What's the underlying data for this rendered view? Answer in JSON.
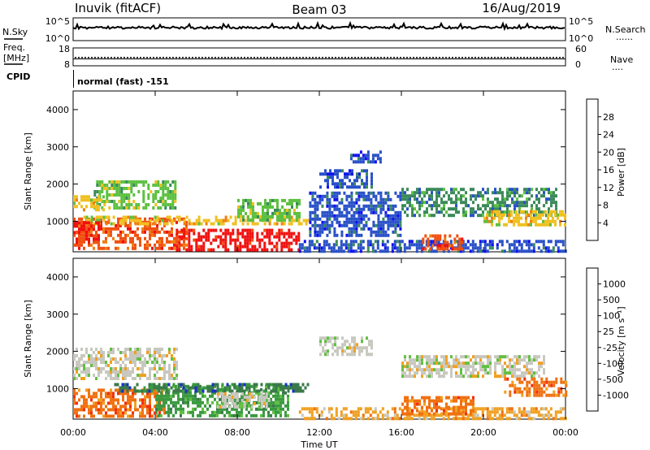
{
  "header": {
    "station": "Inuvik (fitACF)",
    "beam": "Beam 03",
    "date": "16/Aug/2019"
  },
  "sky_panel": {
    "left_label": "N.Sky",
    "right_label": "N.Search",
    "right_marker": "......",
    "tick_top": "10^5",
    "tick_bottom": "10^0"
  },
  "freq_panel": {
    "left_label_1": "Freq.",
    "left_label_2": "[MHz]",
    "left_tick_top": "18",
    "left_tick_bottom": "8",
    "right_label": "Nave",
    "right_marker": "....",
    "right_tick_top": "60",
    "right_tick_bottom": "0"
  },
  "cpid": {
    "label": "CPID",
    "value": "normal (fast) -151"
  },
  "chart_data": [
    {
      "type": "heatmap",
      "name": "power",
      "ylabel": "Slant Range [km]",
      "ylim": [
        180,
        4500
      ],
      "yticks": [
        1000,
        2000,
        3000,
        4000
      ],
      "xlim": [
        0,
        24
      ],
      "colorbar": {
        "label": "Power [dB]",
        "ticks": [
          "4",
          "8",
          "12",
          "16",
          "20",
          "24",
          "28"
        ],
        "colors": [
          "#1010f0",
          "#2850c8",
          "#3a8a5a",
          "#5cc040",
          "#f0c020",
          "#f08010",
          "#f05010",
          "#f01010"
        ]
      },
      "echoes": [
        {
          "t0": 0.0,
          "t1": 5.5,
          "r0": 250,
          "r1": 1100,
          "c": 6
        },
        {
          "t0": 5.0,
          "t1": 11.0,
          "r0": 200,
          "r1": 800,
          "c": 7
        },
        {
          "t0": 0.5,
          "t1": 11.5,
          "r0": 900,
          "r1": 1150,
          "c": 4
        },
        {
          "t0": 0.0,
          "t1": 1.2,
          "r0": 400,
          "r1": 1000,
          "c": 7
        },
        {
          "t0": 1.0,
          "t1": 5.0,
          "r0": 1400,
          "r1": 2100,
          "c": 3
        },
        {
          "t0": 0.0,
          "t1": 1.5,
          "r0": 1300,
          "r1": 1700,
          "c": 4
        },
        {
          "t0": 11.0,
          "t1": 24.0,
          "r0": 200,
          "r1": 500,
          "c": 1
        },
        {
          "t0": 17.0,
          "t1": 19.0,
          "r0": 250,
          "r1": 650,
          "c": 6
        },
        {
          "t0": 11.5,
          "t1": 16.0,
          "r0": 600,
          "r1": 1800,
          "c": 1
        },
        {
          "t0": 12.0,
          "t1": 14.5,
          "r0": 1900,
          "r1": 2400,
          "c": 1
        },
        {
          "t0": 13.5,
          "t1": 15.0,
          "r0": 2600,
          "r1": 2900,
          "c": 1
        },
        {
          "t0": 16.0,
          "t1": 23.5,
          "r0": 1200,
          "r1": 1900,
          "c": 2
        },
        {
          "t0": 20.0,
          "t1": 24.0,
          "r0": 900,
          "r1": 1300,
          "c": 4
        },
        {
          "t0": 8.0,
          "t1": 11.0,
          "r0": 1000,
          "r1": 1600,
          "c": 3
        }
      ]
    },
    {
      "type": "heatmap",
      "name": "velocity",
      "ylabel": "Slant Range [km]",
      "xlabel": "Time UT",
      "ylim": [
        180,
        4500
      ],
      "yticks": [
        1000,
        2000,
        3000,
        4000
      ],
      "xlim": [
        0,
        24
      ],
      "xticks": [
        "00:00",
        "04:00",
        "08:00",
        "12:00",
        "16:00",
        "20:00",
        "00:00"
      ],
      "colorbar": {
        "label": "Velocity [m s⁻¹]",
        "ticks": [
          "1000",
          "500",
          "100",
          "25",
          "-25",
          "-100",
          "-500",
          "-1000"
        ],
        "colors": [
          "#1830c8",
          "#3a7a4a",
          "#3a9a40",
          "#60c040",
          "#c8c8c0",
          "#f0a020",
          "#f07010",
          "#f03010",
          "#f01010"
        ]
      },
      "echoes": [
        {
          "t0": 0.0,
          "t1": 4.5,
          "r0": 250,
          "r1": 1000,
          "c": 6
        },
        {
          "t0": 4.0,
          "t1": 10.5,
          "r0": 300,
          "r1": 1100,
          "c": 2
        },
        {
          "t0": 2.0,
          "t1": 11.5,
          "r0": 900,
          "r1": 1150,
          "c": 1
        },
        {
          "t0": 0.0,
          "t1": 5.0,
          "r0": 1300,
          "r1": 2100,
          "c": 4
        },
        {
          "t0": 7.0,
          "t1": 9.5,
          "r0": 500,
          "r1": 900,
          "c": 4
        },
        {
          "t0": 11.0,
          "t1": 24.0,
          "r0": 200,
          "r1": 500,
          "c": 5
        },
        {
          "t0": 16.0,
          "t1": 19.5,
          "r0": 300,
          "r1": 800,
          "c": 6
        },
        {
          "t0": 12.0,
          "t1": 14.5,
          "r0": 1900,
          "r1": 2400,
          "c": 4
        },
        {
          "t0": 16.0,
          "t1": 23.0,
          "r0": 1300,
          "r1": 1900,
          "c": 4
        },
        {
          "t0": 21.0,
          "t1": 24.0,
          "r0": 800,
          "r1": 1300,
          "c": 6
        }
      ]
    }
  ]
}
